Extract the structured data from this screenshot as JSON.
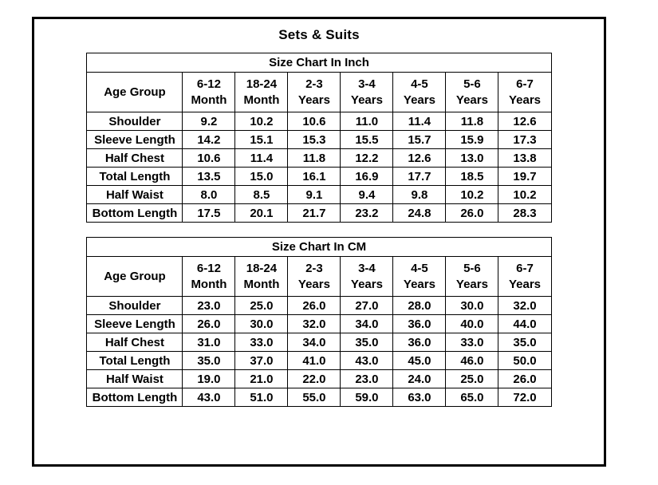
{
  "page": {
    "title": "Sets & Suits"
  },
  "colors": {
    "border": "#000000",
    "background": "#ffffff",
    "text": "#000000"
  },
  "tables": [
    {
      "title": "Size Chart In Inch",
      "corner_label": "Age Group",
      "columns": [
        {
          "line1": "6-12",
          "line2": "Month"
        },
        {
          "line1": "18-24",
          "line2": "Month"
        },
        {
          "line1": "2-3",
          "line2": "Years"
        },
        {
          "line1": "3-4",
          "line2": "Years"
        },
        {
          "line1": "4-5",
          "line2": "Years"
        },
        {
          "line1": "5-6",
          "line2": "Years"
        },
        {
          "line1": "6-7",
          "line2": "Years"
        }
      ],
      "rows": [
        {
          "label": "Shoulder",
          "values": [
            "9.2",
            "10.2",
            "10.6",
            "11.0",
            "11.4",
            "11.8",
            "12.6"
          ]
        },
        {
          "label": "Sleeve Length",
          "values": [
            "14.2",
            "15.1",
            "15.3",
            "15.5",
            "15.7",
            "15.9",
            "17.3"
          ]
        },
        {
          "label": "Half Chest",
          "values": [
            "10.6",
            "11.4",
            "11.8",
            "12.2",
            "12.6",
            "13.0",
            "13.8"
          ]
        },
        {
          "label": "Total Length",
          "values": [
            "13.5",
            "15.0",
            "16.1",
            "16.9",
            "17.7",
            "18.5",
            "19.7"
          ]
        },
        {
          "label": "Half Waist",
          "values": [
            "8.0",
            "8.5",
            "9.1",
            "9.4",
            "9.8",
            "10.2",
            "10.2"
          ]
        },
        {
          "label": "Bottom Length",
          "values": [
            "17.5",
            "20.1",
            "21.7",
            "23.2",
            "24.8",
            "26.0",
            "28.3"
          ]
        }
      ]
    },
    {
      "title": "Size Chart In CM",
      "corner_label": "Age Group",
      "columns": [
        {
          "line1": "6-12",
          "line2": "Month"
        },
        {
          "line1": "18-24",
          "line2": "Month"
        },
        {
          "line1": "2-3",
          "line2": "Years"
        },
        {
          "line1": "3-4",
          "line2": "Years"
        },
        {
          "line1": "4-5",
          "line2": "Years"
        },
        {
          "line1": "5-6",
          "line2": "Years"
        },
        {
          "line1": "6-7",
          "line2": "Years"
        }
      ],
      "rows": [
        {
          "label": "Shoulder",
          "values": [
            "23.0",
            "25.0",
            "26.0",
            "27.0",
            "28.0",
            "30.0",
            "32.0"
          ]
        },
        {
          "label": "Sleeve Length",
          "values": [
            "26.0",
            "30.0",
            "32.0",
            "34.0",
            "36.0",
            "40.0",
            "44.0"
          ]
        },
        {
          "label": "Half Chest",
          "values": [
            "31.0",
            "33.0",
            "34.0",
            "35.0",
            "36.0",
            "33.0",
            "35.0"
          ]
        },
        {
          "label": "Total Length",
          "values": [
            "35.0",
            "37.0",
            "41.0",
            "43.0",
            "45.0",
            "46.0",
            "50.0"
          ]
        },
        {
          "label": "Half Waist",
          "values": [
            "19.0",
            "21.0",
            "22.0",
            "23.0",
            "24.0",
            "25.0",
            "26.0"
          ]
        },
        {
          "label": "Bottom Length",
          "values": [
            "43.0",
            "51.0",
            "55.0",
            "59.0",
            "63.0",
            "65.0",
            "72.0"
          ]
        }
      ]
    }
  ]
}
